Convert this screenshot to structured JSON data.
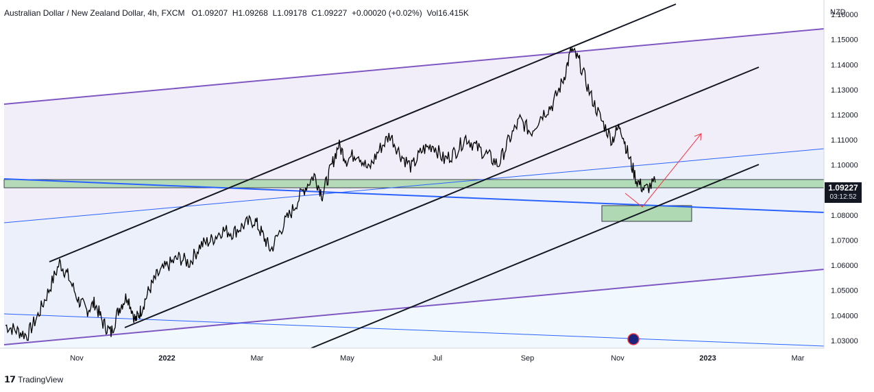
{
  "header": {
    "symbol": "Australian Dollar / New Zealand Dollar, 4h, FXCM",
    "open": "O1.09207",
    "high": "H1.09268",
    "low": "L1.09178",
    "close": "C1.09227",
    "change": "+0.00020 (+0.02%)",
    "volume": "Vol16.415K"
  },
  "currency": "NZD",
  "price_tag": {
    "value": "1.09227",
    "timer": "03:12:52"
  },
  "footer": {
    "brand": "TradingView"
  },
  "colors": {
    "candles": "#000000",
    "purple_channel": "#7e57c2",
    "blue_line": "#2962ff",
    "zone_fill": "#a5d6a7",
    "projection_arrow": "#f23645"
  },
  "chart_data": {
    "type": "line",
    "title": "",
    "xlabel": "",
    "ylabel": "",
    "ylim": [
      1.0275,
      1.1625
    ],
    "y_ticks": [
      "1.16000",
      "1.15000",
      "1.14000",
      "1.13000",
      "1.12000",
      "1.11000",
      "1.10000",
      "1.09000",
      "1.08000",
      "1.07000",
      "1.06000",
      "1.05000",
      "1.04000",
      "1.03000"
    ],
    "x_ticks": [
      "Nov",
      "2022",
      "Mar",
      "May",
      "Jul",
      "Sep",
      "Nov",
      "2023",
      "Mar"
    ],
    "series": [
      {
        "values": [
          [
            0,
            1.036
          ],
          [
            0.4,
            1.034
          ],
          [
            0.8,
            1.032
          ],
          [
            1.2,
            1.04
          ],
          [
            1.6,
            1.05
          ],
          [
            2.0,
            1.061
          ],
          [
            2.3,
            1.056
          ],
          [
            2.7,
            1.046
          ],
          [
            3.0,
            1.042
          ],
          [
            3.3,
            1.045
          ],
          [
            3.6,
            1.037
          ],
          [
            3.9,
            1.033
          ],
          [
            4.2,
            1.043
          ],
          [
            4.5,
            1.048
          ],
          [
            4.8,
            1.038
          ],
          [
            5.0,
            1.042
          ],
          [
            5.3,
            1.05
          ],
          [
            5.6,
            1.056
          ],
          [
            6.0,
            1.06
          ],
          [
            6.4,
            1.063
          ],
          [
            6.8,
            1.061
          ],
          [
            7.2,
            1.068
          ],
          [
            7.6,
            1.07
          ],
          [
            8.0,
            1.074
          ],
          [
            8.4,
            1.073
          ],
          [
            8.8,
            1.076
          ],
          [
            9.2,
            1.078
          ],
          [
            9.5,
            1.072
          ],
          [
            9.8,
            1.066
          ],
          [
            10.2,
            1.075
          ],
          [
            10.6,
            1.082
          ],
          [
            11.0,
            1.09
          ],
          [
            11.4,
            1.096
          ],
          [
            11.7,
            1.088
          ],
          [
            12.0,
            1.098
          ],
          [
            12.3,
            1.108
          ],
          [
            12.6,
            1.102
          ],
          [
            13.0,
            1.105
          ],
          [
            13.4,
            1.098
          ],
          [
            13.8,
            1.106
          ],
          [
            14.2,
            1.112
          ],
          [
            14.6,
            1.104
          ],
          [
            15.0,
            1.099
          ],
          [
            15.4,
            1.106
          ],
          [
            15.8,
            1.108
          ],
          [
            16.2,
            1.102
          ],
          [
            16.6,
            1.105
          ],
          [
            17.0,
            1.111
          ],
          [
            17.4,
            1.107
          ],
          [
            17.8,
            1.104
          ],
          [
            18.2,
            1.1
          ],
          [
            18.6,
            1.11
          ],
          [
            19.0,
            1.118
          ],
          [
            19.4,
            1.113
          ],
          [
            19.8,
            1.12
          ],
          [
            20.2,
            1.124
          ],
          [
            20.6,
            1.134
          ],
          [
            20.9,
            1.146
          ],
          [
            21.2,
            1.141
          ],
          [
            21.6,
            1.128
          ],
          [
            22.0,
            1.118
          ],
          [
            22.4,
            1.11
          ],
          [
            22.7,
            1.116
          ],
          [
            23.0,
            1.104
          ],
          [
            23.3,
            1.094
          ],
          [
            23.6,
            1.09
          ],
          [
            24.0,
            1.093
          ]
        ]
      }
    ],
    "annotations": [
      "ascending black parallel channel",
      "ascending purple channel with shaded fill",
      "blue trendlines",
      "green horizontal support zone",
      "green target zone",
      "red projection arrow"
    ],
    "grid": false
  }
}
